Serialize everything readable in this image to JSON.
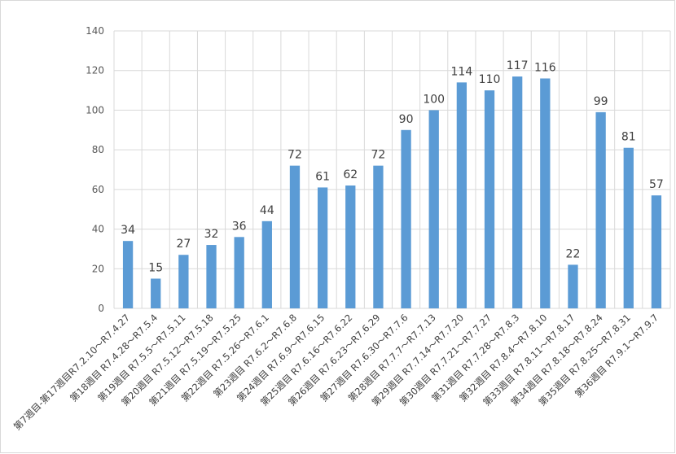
{
  "chart_data": {
    "type": "bar",
    "categories": [
      "第7週目-第17週目R7.2.10～R7.4.27",
      "第18週目 R7.4.28～R7.5.4",
      "第19週目 R7.5.5～R7.5.11",
      "第20週目 R7.5.12～R7.5.18",
      "第21週目 R7.5.19～R7.5.25",
      "第22週目 R7.5.26～R7.6.1",
      "第23週目 R7.6.2～R7.6.8",
      "第24週目 R7.6.9～R7.6.15",
      "第25週目 R7.6.16～R7.6.22",
      "第26週目 R7.6.23～R7.6.29",
      "第27週目 R7.6.30～R7.7.6",
      "第28週目 R7.7.7～R7.7.13",
      "第29週目 R7.7.14～R7.7.20",
      "第30週目 R7.7.21～R7.7.27",
      "第31週目 R7.7.28～R7.8.3",
      "第32週目 R7.8.4～R7.8.10",
      "第33週目 R7.8.11～R7.8.17",
      "第34週目 R7.8.18～R7.8.24",
      "第35週目 R7.8.25～R7.8.31",
      "第36週目 R7.9.1～R7.9.7"
    ],
    "values": [
      34,
      15,
      27,
      32,
      36,
      44,
      72,
      61,
      62,
      72,
      90,
      100,
      114,
      110,
      117,
      116,
      22,
      99,
      81,
      57
    ],
    "ylim": [
      0,
      140
    ],
    "yticks": [
      0,
      20,
      40,
      60,
      80,
      100,
      120,
      140
    ],
    "grid": true,
    "legend": "none",
    "data_labels": true,
    "bar_color": "#5b9bd5",
    "title": "",
    "xlabel": "",
    "ylabel": ""
  }
}
